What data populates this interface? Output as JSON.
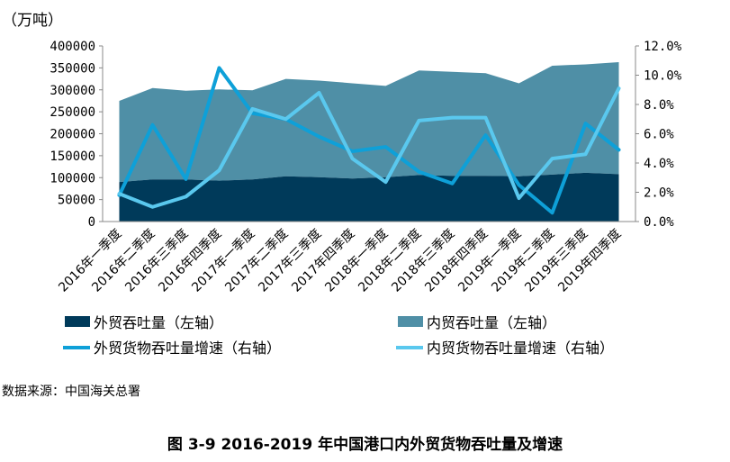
{
  "chart_data": {
    "type": "area+line",
    "unit_label": "（万吨）",
    "categories": [
      "2016年一季度",
      "2016年二季度",
      "2016年三季度",
      "2016年四季度",
      "2017年一季度",
      "2017年二季度",
      "2017年三季度",
      "2017年四季度",
      "2018年一季度",
      "2018年二季度",
      "2018年三季度",
      "2018年四季度",
      "2019年一季度",
      "2019年二季度",
      "2019年三季度",
      "2019年四季度"
    ],
    "series": [
      {
        "name": "外贸吞吐量（左轴）",
        "kind": "area",
        "axis": "left",
        "color": "#003a5a",
        "values": [
          90000,
          96000,
          96000,
          93000,
          96000,
          103000,
          101000,
          98000,
          101000,
          106000,
          104000,
          104000,
          103000,
          107000,
          111000,
          108000
        ]
      },
      {
        "name": "内贸吞吐量（左轴）",
        "kind": "area",
        "axis": "left",
        "color": "#4f8fa6",
        "values": [
          185000,
          208000,
          202000,
          208000,
          203000,
          222000,
          220000,
          217000,
          208000,
          238000,
          237000,
          234000,
          212000,
          248000,
          247000,
          255000
        ]
      },
      {
        "name": "外贸货物吞吐量增速（右轴）",
        "kind": "line",
        "axis": "right",
        "color": "#0ea0d8",
        "values": [
          1.8,
          6.6,
          2.9,
          10.5,
          7.4,
          7.0,
          5.8,
          4.8,
          5.1,
          3.4,
          2.6,
          5.9,
          2.5,
          0.6,
          6.7,
          4.9
        ]
      },
      {
        "name": "内贸货物吞吐量增速（右轴）",
        "kind": "line",
        "axis": "right",
        "color": "#5ac8ee",
        "values": [
          1.9,
          1.0,
          1.7,
          3.5,
          7.7,
          7.0,
          8.8,
          4.3,
          2.7,
          6.9,
          7.1,
          7.1,
          1.6,
          4.3,
          4.6,
          9.1
        ]
      }
    ],
    "y_left": {
      "min": 0,
      "max": 400000,
      "ticks": [
        "0",
        "50000",
        "100000",
        "150000",
        "200000",
        "250000",
        "300000",
        "350000",
        "400000"
      ]
    },
    "y_right": {
      "min": 0,
      "max": 12,
      "ticks": [
        "0.0%",
        "2.0%",
        "4.0%",
        "6.0%",
        "8.0%",
        "10.0%",
        "12.0%"
      ]
    },
    "grid": false,
    "legend_position": "bottom"
  },
  "source": "数据来源：中国海关总署",
  "caption": "图 3-9   2016-2019 年中国港口内外贸货物吞吐量及增速"
}
